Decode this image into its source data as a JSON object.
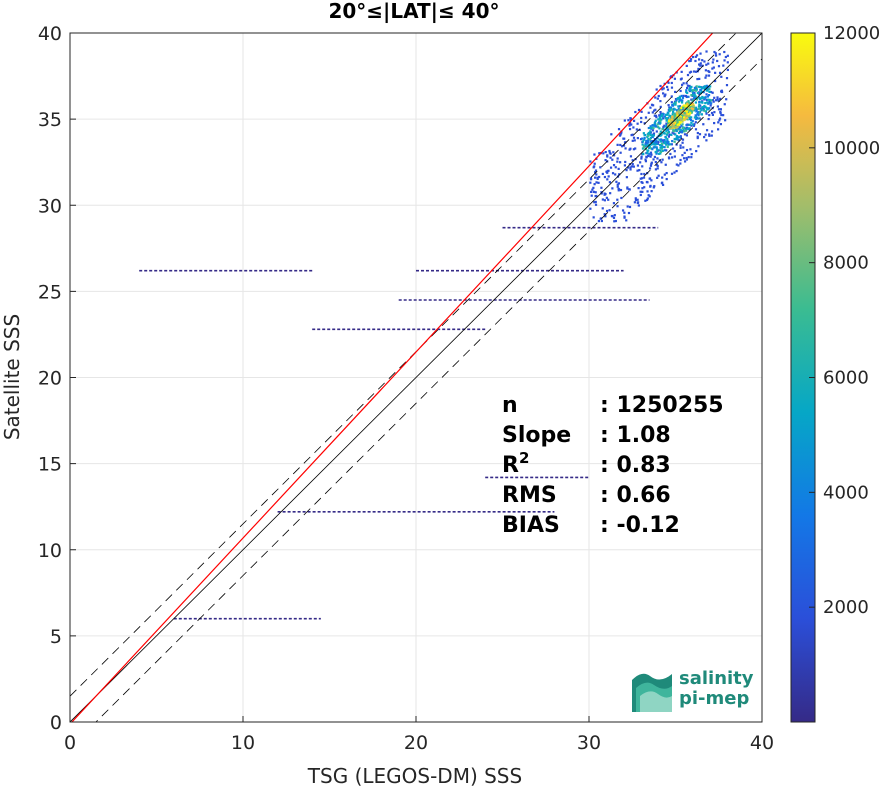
{
  "chart_data": {
    "type": "heatmap",
    "title": "20°≤|LAT|≤ 40°",
    "xlabel": "TSG (LEGOS-DM) SSS",
    "ylabel": "Satellite SSS",
    "xlim": [
      0,
      40
    ],
    "ylim": [
      0,
      40
    ],
    "xticks": [
      "0",
      "10",
      "20",
      "30",
      "40"
    ],
    "yticks": [
      "0",
      "5",
      "10",
      "15",
      "20",
      "25",
      "30",
      "35",
      "40"
    ],
    "grid": true,
    "colorbar": {
      "range": [
        0,
        12000
      ],
      "ticks": [
        "2000",
        "4000",
        "6000",
        "8000",
        "10000",
        "12000"
      ],
      "colormap": "parula"
    },
    "stats": [
      {
        "label": "n",
        "value": ": 1250255"
      },
      {
        "label": "Slope",
        "value": ": 1.08"
      },
      {
        "label": "R",
        "sup": "2",
        "value": ": 0.83"
      },
      {
        "label": "RMS",
        "value": ": 0.66"
      },
      {
        "label": "BIAS",
        "value": ": -0.12"
      }
    ],
    "reference_lines": {
      "identity": {
        "slope": 1,
        "intercept": 0,
        "color": "#000000"
      },
      "bounds": {
        "offsets": [
          -1.5,
          1.5
        ],
        "color": "#000000"
      },
      "fit": {
        "slope": 1.08,
        "intercept": -0.12,
        "color": "#ff0000"
      }
    },
    "density_regions": [
      {
        "x": [
          30,
          38
        ],
        "y": [
          29,
          39
        ],
        "level": 0.15
      },
      {
        "x": [
          33,
          37
        ],
        "y": [
          33,
          37
        ],
        "level": 0.45
      },
      {
        "x": [
          34.5,
          36
        ],
        "y": [
          34.5,
          36
        ],
        "level": 0.85
      }
    ],
    "horizontal_streaks": [
      {
        "y": 28.7,
        "x": [
          25,
          34
        ]
      },
      {
        "y": 24.5,
        "x": [
          19,
          33.5
        ]
      },
      {
        "y": 22.8,
        "x": [
          14,
          24
        ]
      },
      {
        "y": 14.2,
        "x": [
          24,
          30
        ]
      },
      {
        "y": 12.2,
        "x": [
          12,
          28
        ]
      },
      {
        "y": 6.0,
        "x": [
          6,
          14.5
        ]
      },
      {
        "y": 26.2,
        "x": [
          4,
          14
        ]
      },
      {
        "y": 26.2,
        "x": [
          20,
          32
        ]
      }
    ],
    "logo": {
      "line1": "salinity",
      "line2": "pi-mep"
    }
  }
}
